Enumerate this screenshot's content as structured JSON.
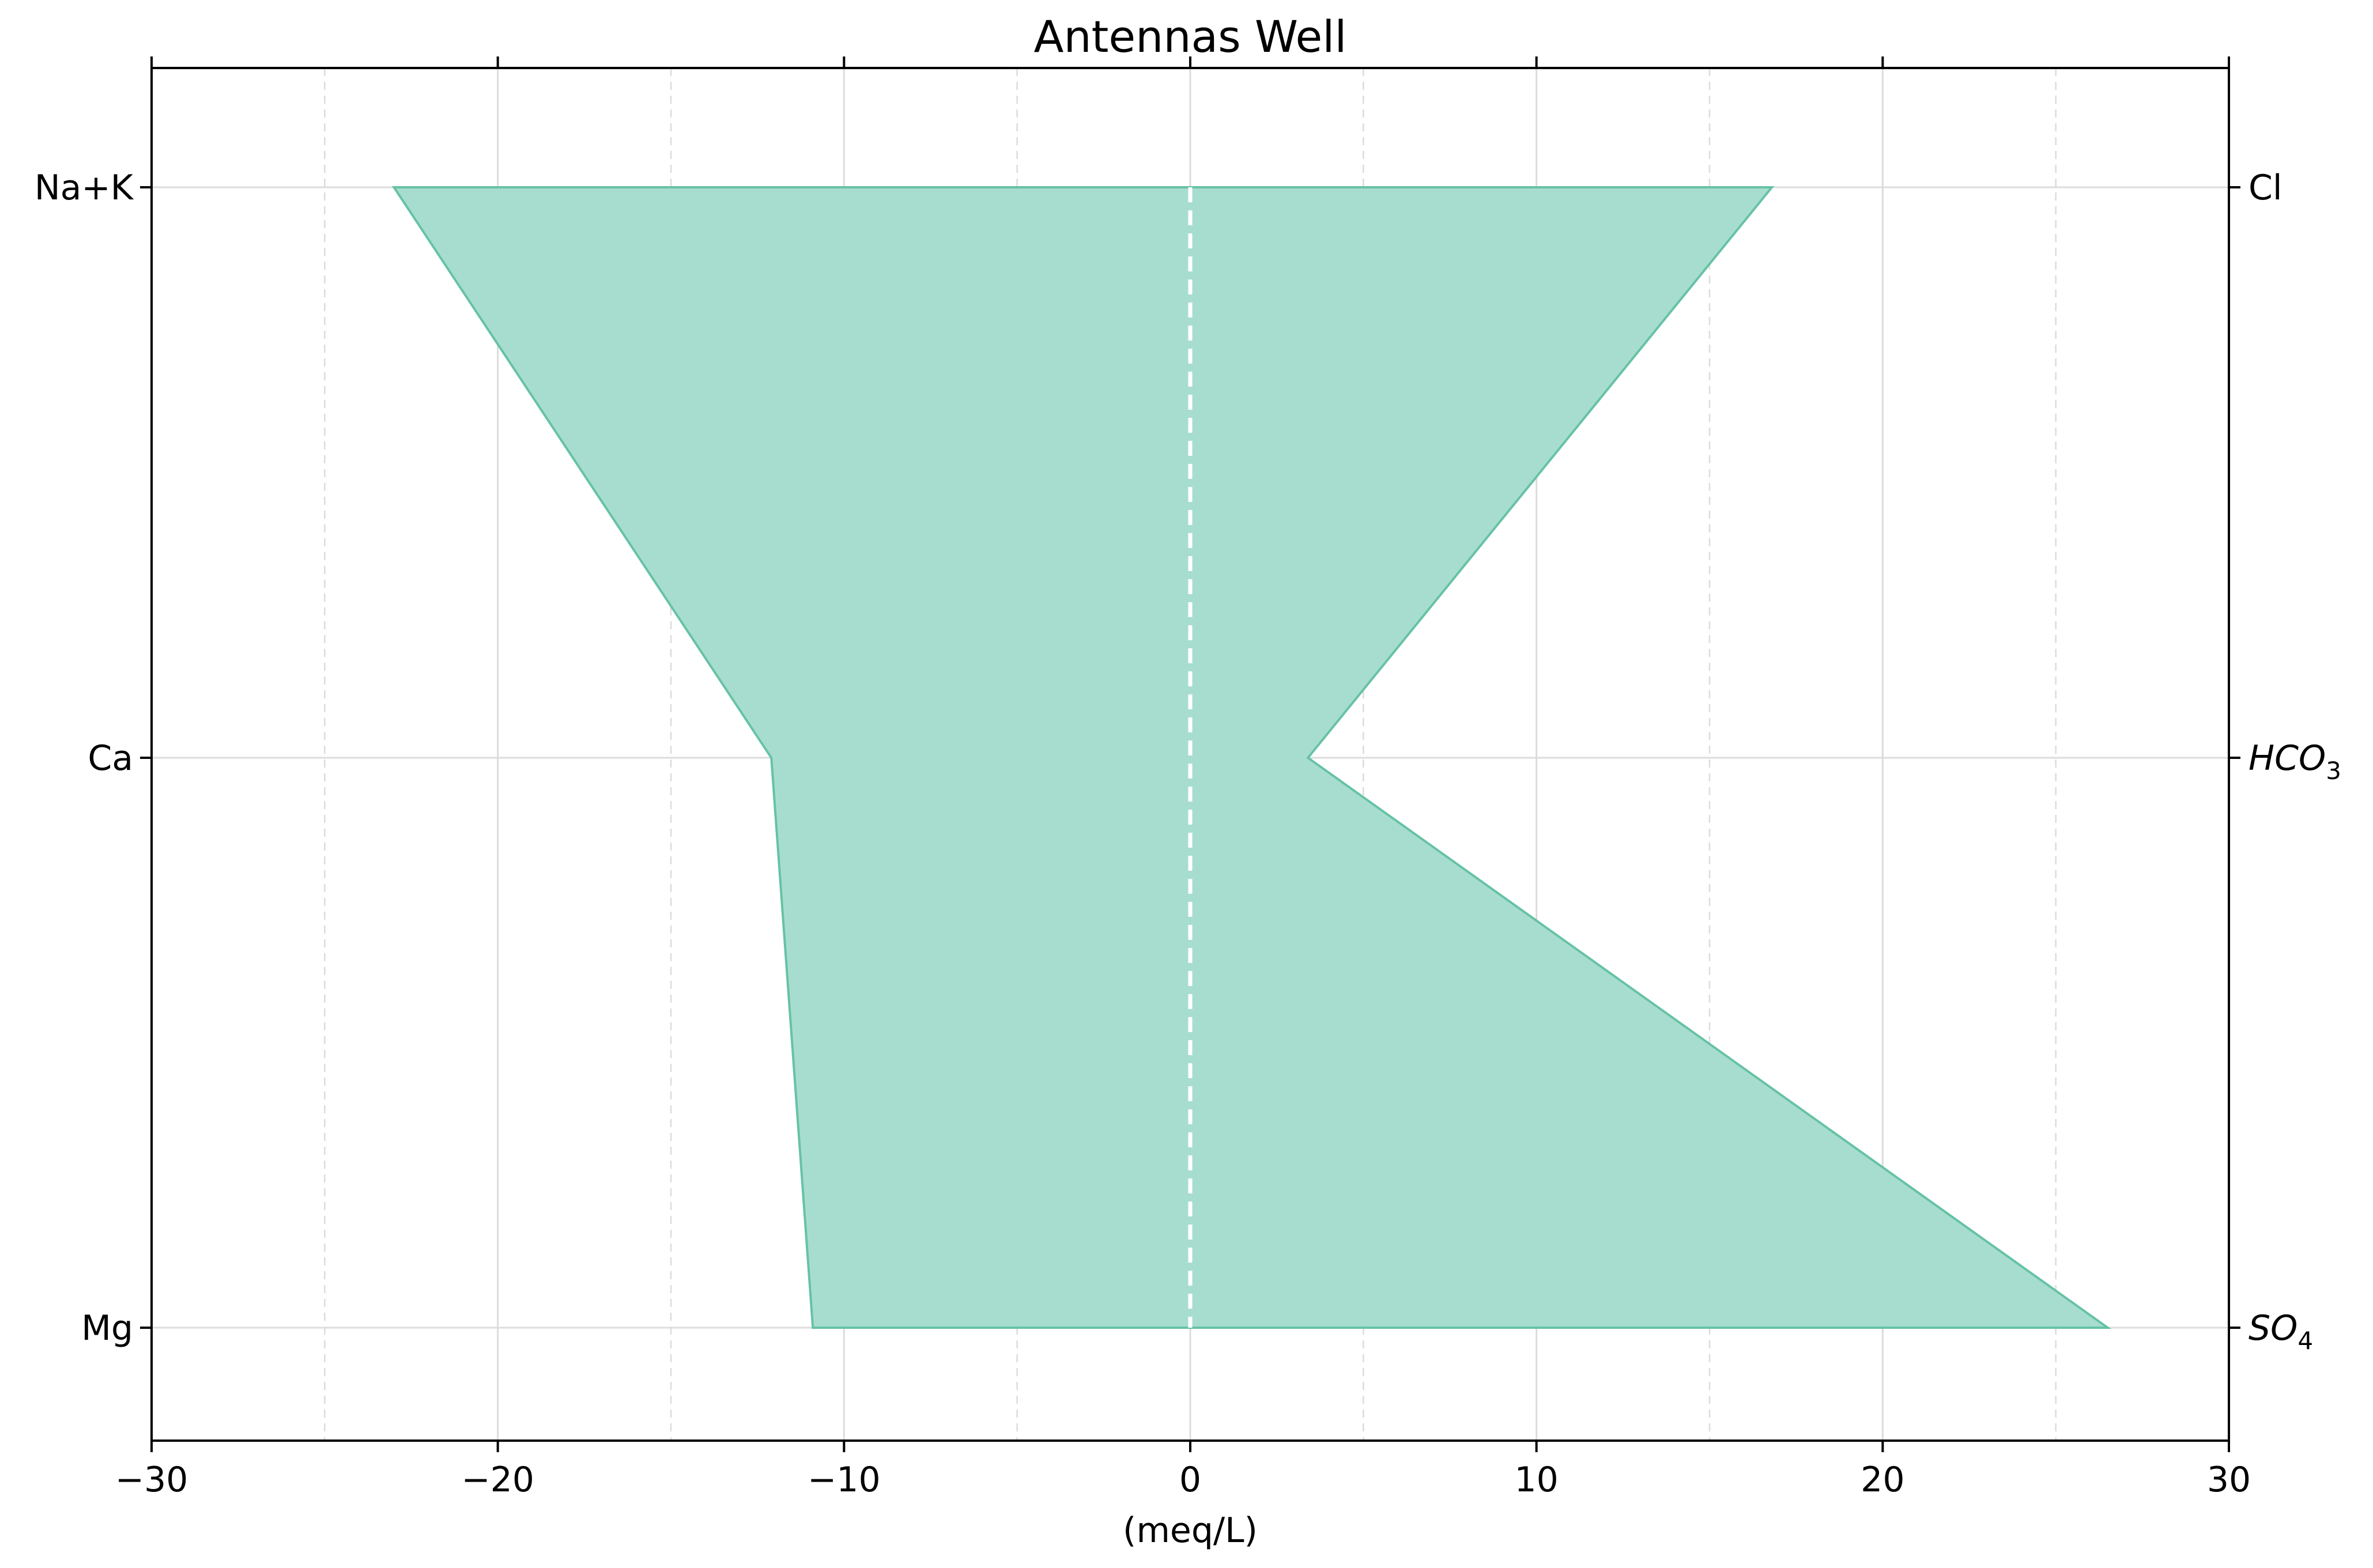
{
  "chart_data": {
    "type": "area",
    "title": "Antennas Well",
    "xlabel": "(meq/L)",
    "xlim": [
      -30,
      30
    ],
    "x_ticks": [
      -30,
      -20,
      -10,
      0,
      10,
      20,
      30
    ],
    "x_tick_labels": [
      "−30",
      "−20",
      "−10",
      "0",
      "10",
      "20",
      "30"
    ],
    "x_minor_ticks": [
      -25,
      -15,
      -5,
      5,
      15,
      25
    ],
    "grid": true,
    "cations": {
      "labels": [
        "Na+K",
        "Ca",
        "Mg"
      ],
      "values": [
        -23.0,
        -12.1,
        -10.9
      ]
    },
    "anions": {
      "labels": [
        {
          "base": "Cl",
          "sub": ""
        },
        {
          "base": "HCO",
          "sub": "3"
        },
        {
          "base": "SO",
          "sub": "4"
        }
      ],
      "values": [
        16.8,
        3.4,
        26.5
      ]
    },
    "zero_line": {
      "x": 0,
      "style": "dashed",
      "color": "#ffffff"
    },
    "colors": {
      "fill": "#a7ddcf",
      "edge": "#66c2a5",
      "grid": "#dcdcdc",
      "axis": "#000000"
    }
  }
}
